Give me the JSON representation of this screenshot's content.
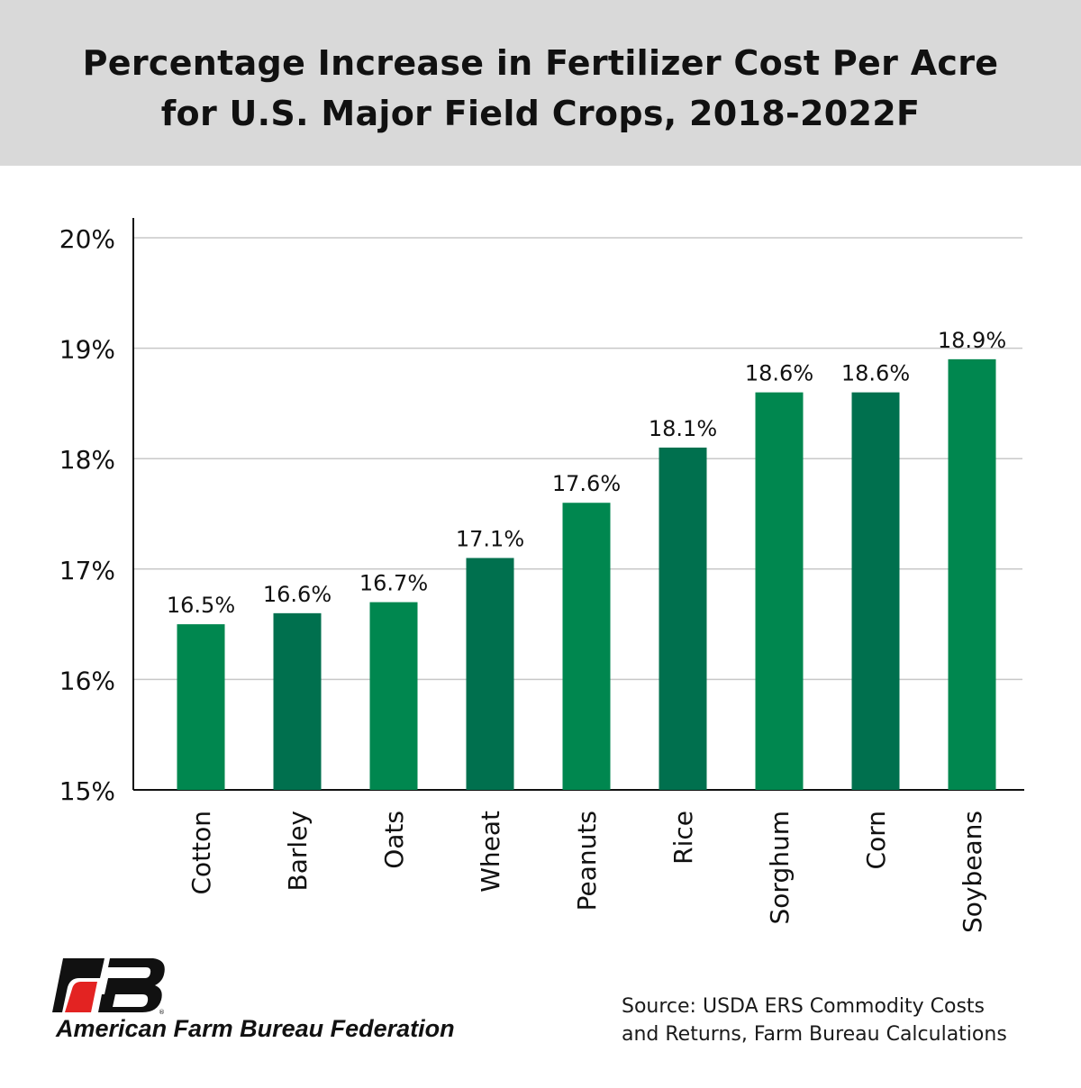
{
  "header": {
    "title_line1": "Percentage Increase in Fertilizer Cost Per Acre",
    "title_line2": "for U.S. Major Field Crops, 2018-2022F"
  },
  "chart_data": {
    "type": "bar",
    "title": "Percentage Increase in Fertilizer Cost Per Acre for U.S. Major Field Crops, 2018-2022F",
    "categories": [
      "Cotton",
      "Barley",
      "Oats",
      "Wheat",
      "Peanuts",
      "Rice",
      "Sorghum",
      "Corn",
      "Soybeans"
    ],
    "values": [
      16.5,
      16.6,
      16.7,
      17.1,
      17.6,
      18.1,
      18.6,
      18.6,
      18.9
    ],
    "data_labels": [
      "16.5%",
      "16.6%",
      "16.7%",
      "17.1%",
      "17.6%",
      "18.1%",
      "18.6%",
      "18.6%",
      "18.9%"
    ],
    "ylim": [
      15,
      20
    ],
    "yticks": [
      "15%",
      "16%",
      "17%",
      "18%",
      "19%",
      "20%"
    ],
    "xlabel": "",
    "ylabel": "",
    "grid": true,
    "colors": {
      "light": "#00874f",
      "dark": "#00704e"
    }
  },
  "footer": {
    "source_line1": "Source: USDA ERS Commodity Costs",
    "source_line2": "and Returns, Farm Bureau Calculations",
    "logo_text": "American Farm Bureau Federation"
  }
}
